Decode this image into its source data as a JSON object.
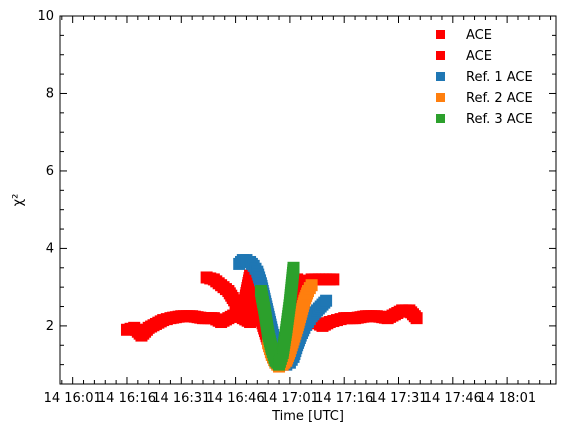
{
  "chart_data": {
    "type": "scatter",
    "title": "",
    "xlabel": "Time [UTC]",
    "ylabel": "χ²",
    "ylim": [
      0.5,
      10
    ],
    "xlim": [
      "14 15:57:30",
      "14 18:14:30"
    ],
    "x_ticks": [
      "14 16:01",
      "14 16:16",
      "14 16:31",
      "14 16:46",
      "14 17:01",
      "14 17:16",
      "14 17:31",
      "14 17:46",
      "14 18:01"
    ],
    "y_ticks": [
      2,
      4,
      6,
      8,
      10
    ],
    "grid": false,
    "legend_placement": "top-right",
    "marker": "square",
    "series": [
      {
        "name": "ACE",
        "color": "#ff0000",
        "points": [
          [
            "14 16:16",
            1.9
          ],
          [
            "14 16:18",
            1.95
          ],
          [
            "14 16:20",
            1.75
          ],
          [
            "14 16:22",
            1.95
          ],
          [
            "14 16:24",
            2.05
          ],
          [
            "14 16:26",
            2.15
          ],
          [
            "14 16:28",
            2.2
          ],
          [
            "14 16:31",
            2.25
          ],
          [
            "14 16:34",
            2.25
          ],
          [
            "14 16:37",
            2.2
          ],
          [
            "14 16:40",
            2.2
          ],
          [
            "14 16:42",
            2.1
          ],
          [
            "14 16:44",
            2.2
          ],
          [
            "14 16:46",
            2.3
          ],
          [
            "14 16:48",
            2.2
          ],
          [
            "14 16:50",
            2.1
          ],
          [
            "14 16:51",
            2.4
          ],
          [
            "14 16:52",
            2.8
          ],
          [
            "14 16:53",
            2.3
          ],
          [
            "14 16:54",
            2.0
          ],
          [
            "14 16:56",
            1.3
          ],
          [
            "14 16:58",
            1.0
          ],
          [
            "14 17:00",
            1.15
          ],
          [
            "14 17:02",
            1.6
          ],
          [
            "14 17:04",
            2.05
          ],
          [
            "14 17:06",
            2.15
          ],
          [
            "14 17:08",
            2.1
          ],
          [
            "14 17:10",
            2.0
          ],
          [
            "14 17:12",
            2.1
          ],
          [
            "14 17:14",
            2.15
          ],
          [
            "14 17:16",
            2.2
          ],
          [
            "14 17:19",
            2.2
          ],
          [
            "14 17:22",
            2.25
          ],
          [
            "14 17:25",
            2.25
          ],
          [
            "14 17:28",
            2.2
          ],
          [
            "14 17:30",
            2.3
          ],
          [
            "14 17:32",
            2.4
          ],
          [
            "14 17:34",
            2.4
          ],
          [
            "14 17:36",
            2.2
          ]
        ]
      },
      {
        "name": "ACE",
        "color": "#ff0000",
        "points": [
          [
            "14 16:38",
            3.25
          ],
          [
            "14 16:40",
            3.2
          ],
          [
            "14 16:42",
            3.05
          ],
          [
            "14 16:44",
            2.9
          ],
          [
            "14 16:46",
            2.6
          ],
          [
            "14 16:48",
            2.4
          ],
          [
            "14 16:50",
            3.3
          ],
          [
            "14 16:51",
            3.0
          ],
          [
            "14 16:52",
            2.6
          ],
          [
            "14 16:53",
            2.2
          ],
          [
            "14 16:55",
            1.6
          ],
          [
            "14 16:57",
            1.1
          ],
          [
            "14 16:59",
            1.0
          ],
          [
            "14 17:00",
            1.3
          ],
          [
            "14 17:02",
            2.3
          ],
          [
            "14 17:03",
            3.2
          ],
          [
            "14 17:05",
            3.1
          ],
          [
            "14 17:07",
            3.2
          ],
          [
            "14 17:09",
            3.2
          ],
          [
            "14 17:11",
            3.2
          ],
          [
            "14 17:13",
            3.2
          ]
        ]
      },
      {
        "name": "Ref. 1 ACE",
        "color": "#1f77b4",
        "points": [
          [
            "14 16:47",
            3.6
          ],
          [
            "14 16:48",
            3.7
          ],
          [
            "14 16:49",
            3.7
          ],
          [
            "14 16:50",
            3.65
          ],
          [
            "14 16:51",
            3.55
          ],
          [
            "14 16:52",
            3.4
          ],
          [
            "14 16:53",
            3.1
          ],
          [
            "14 16:54",
            2.7
          ],
          [
            "14 16:55",
            2.3
          ],
          [
            "14 16:56",
            1.9
          ],
          [
            "14 16:57",
            1.5
          ],
          [
            "14 16:58",
            1.2
          ],
          [
            "14 16:59",
            1.05
          ],
          [
            "14 17:00",
            1.0
          ],
          [
            "14 17:01",
            1.05
          ],
          [
            "14 17:02",
            1.2
          ],
          [
            "14 17:03",
            1.5
          ],
          [
            "14 17:04",
            1.75
          ],
          [
            "14 17:05",
            1.95
          ],
          [
            "14 17:06",
            2.1
          ],
          [
            "14 17:07",
            2.25
          ],
          [
            "14 17:08",
            2.35
          ],
          [
            "14 17:09",
            2.45
          ],
          [
            "14 17:10",
            2.55
          ],
          [
            "14 17:11",
            2.65
          ]
        ]
      },
      {
        "name": "Ref. 2 ACE",
        "color": "#ff7f0e",
        "points": [
          [
            "14 16:55",
            1.55
          ],
          [
            "14 16:56",
            1.25
          ],
          [
            "14 16:57",
            1.05
          ],
          [
            "14 16:58",
            0.95
          ],
          [
            "14 16:59",
            1.0
          ],
          [
            "14 17:00",
            1.1
          ],
          [
            "14 17:01",
            1.35
          ],
          [
            "14 17:02",
            1.65
          ],
          [
            "14 17:03",
            1.95
          ],
          [
            "14 17:04",
            2.3
          ],
          [
            "14 17:05",
            2.65
          ],
          [
            "14 17:06",
            2.9
          ],
          [
            "14 17:07",
            3.05
          ]
        ]
      },
      {
        "name": "Ref. 3 ACE",
        "color": "#2ca02c",
        "points": [
          [
            "14 16:53",
            2.9
          ],
          [
            "14 16:54",
            2.4
          ],
          [
            "14 16:55",
            1.8
          ],
          [
            "14 16:56",
            1.4
          ],
          [
            "14 16:57",
            1.1
          ],
          [
            "14 16:58",
            1.0
          ],
          [
            "14 16:59",
            1.3
          ],
          [
            "14 17:00",
            1.9
          ],
          [
            "14 17:01",
            2.6
          ],
          [
            "14 17:02",
            3.5
          ]
        ]
      }
    ]
  }
}
